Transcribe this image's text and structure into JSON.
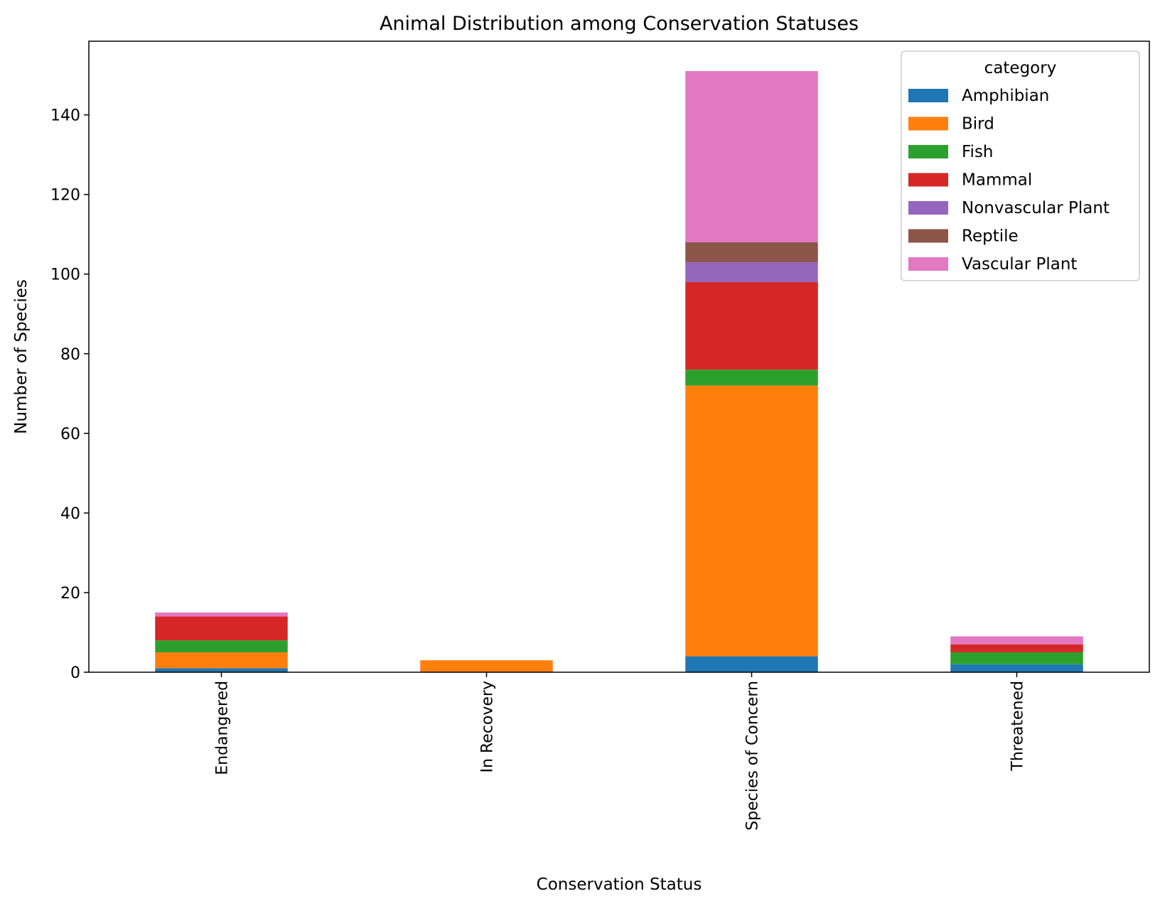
{
  "chart_data": {
    "type": "bar",
    "stacked": true,
    "title": "Animal Distribution among Conservation Statuses",
    "xlabel": "Conservation Status",
    "ylabel": "Number of Species",
    "categories": [
      "Endangered",
      "In Recovery",
      "Species of Concern",
      "Threatened"
    ],
    "ylim": [
      0,
      158.5
    ],
    "yticks": [
      0,
      20,
      40,
      60,
      80,
      100,
      120,
      140
    ],
    "grid": false,
    "legend": {
      "title": "category",
      "placement": "top-right"
    },
    "series": [
      {
        "name": "Amphibian",
        "color": "#1f77b4",
        "values": [
          1,
          0,
          4,
          2
        ]
      },
      {
        "name": "Bird",
        "color": "#ff7f0e",
        "values": [
          4,
          3,
          68,
          0
        ]
      },
      {
        "name": "Fish",
        "color": "#2ca02c",
        "values": [
          3,
          0,
          4,
          3
        ]
      },
      {
        "name": "Mammal",
        "color": "#d62728",
        "values": [
          6,
          0,
          22,
          2
        ]
      },
      {
        "name": "Nonvascular Plant",
        "color": "#9467bd",
        "values": [
          0,
          0,
          5,
          0
        ]
      },
      {
        "name": "Reptile",
        "color": "#8c564b",
        "values": [
          0,
          0,
          5,
          0
        ]
      },
      {
        "name": "Vascular Plant",
        "color": "#e377c2",
        "values": [
          1,
          0,
          43,
          2
        ]
      }
    ]
  }
}
